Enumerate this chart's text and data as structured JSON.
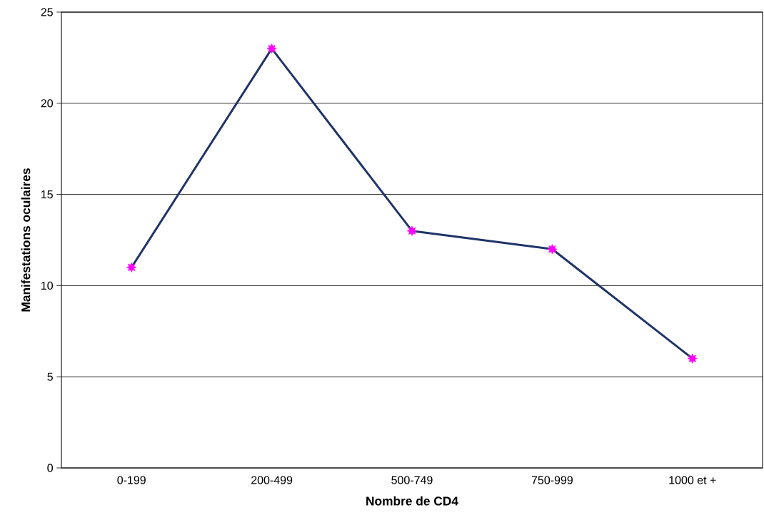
{
  "chart_data": {
    "type": "line",
    "xlabel": "Nombre de CD4",
    "ylabel": "Manifestations oculaires",
    "categories": [
      "0-199",
      "200-499",
      "500-749",
      "750-999",
      "1000 et +"
    ],
    "series": [
      {
        "color": "#1f3468",
        "colors": [
          "#ff00ff",
          "#ff00ff",
          "#ff00ff",
          "#ff00ff",
          "#ff00ff"
        ],
        "values": [
          11,
          23,
          13,
          12,
          6
        ]
      }
    ],
    "marker": "star",
    "line_style": "solid",
    "ylim": [
      0,
      25
    ],
    "yticks": [
      0,
      5,
      10,
      15,
      20,
      25
    ],
    "grid": "y"
  }
}
